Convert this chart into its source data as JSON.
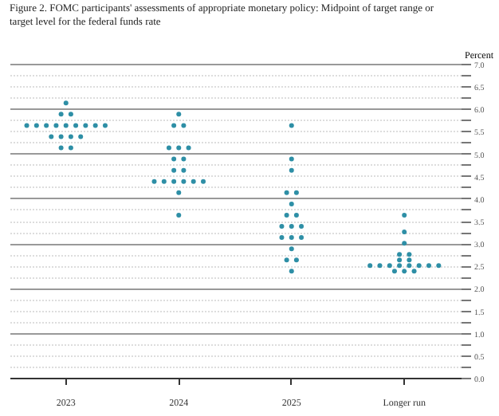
{
  "chart_data": {
    "type": "scatter",
    "title": "Figure 2. FOMC participants' assessments of appropriate monetary policy: Midpoint of target range or target level for the federal funds rate",
    "ylabel": "Percent",
    "categories": [
      "2023",
      "2024",
      "2025",
      "Longer run"
    ],
    "series": [
      {
        "color": "#2e8fa6",
        "values": [
          6.125,
          5.875,
          5.625,
          3.625
        ]
      },
      {
        "color": "#2e8fa6",
        "values": [
          5.875,
          5.625,
          4.875,
          3.25
        ]
      },
      {
        "color": "#2e8fa6",
        "values": [
          5.875,
          5.625,
          4.625,
          3.0
        ]
      },
      {
        "color": "#2e8fa6",
        "values": [
          5.625,
          5.125,
          4.125,
          2.75
        ]
      },
      {
        "color": "#2e8fa6",
        "values": [
          5.625,
          5.125,
          4.125,
          2.75
        ]
      },
      {
        "color": "#2e8fa6",
        "values": [
          5.625,
          5.125,
          3.875,
          2.625
        ]
      },
      {
        "color": "#2e8fa6",
        "values": [
          5.625,
          4.875,
          3.625,
          2.625
        ]
      },
      {
        "color": "#2e8fa6",
        "values": [
          5.625,
          4.875,
          3.625,
          2.5
        ]
      },
      {
        "color": "#2e8fa6",
        "values": [
          5.625,
          4.625,
          3.375,
          2.5
        ]
      },
      {
        "color": "#2e8fa6",
        "values": [
          5.625,
          4.625,
          3.375,
          2.5
        ]
      },
      {
        "color": "#2e8fa6",
        "values": [
          5.625,
          4.375,
          3.375,
          2.5
        ]
      },
      {
        "color": "#2e8fa6",
        "values": [
          5.625,
          4.375,
          3.125,
          2.5
        ]
      },
      {
        "color": "#2e8fa6",
        "values": [
          5.375,
          4.375,
          3.125,
          2.5
        ]
      },
      {
        "color": "#2e8fa6",
        "values": [
          5.375,
          4.375,
          3.125,
          2.5
        ]
      },
      {
        "color": "#2e8fa6",
        "values": [
          5.375,
          4.375,
          2.875,
          2.5
        ]
      },
      {
        "color": "#2e8fa6",
        "values": [
          5.375,
          4.375,
          2.625,
          2.375
        ]
      },
      {
        "color": "#2e8fa6",
        "values": [
          5.125,
          4.125,
          2.625,
          2.375
        ]
      },
      {
        "color": "#2e8fa6",
        "values": [
          5.125,
          3.625,
          2.375,
          2.375
        ]
      }
    ],
    "ylim": [
      0,
      7
    ],
    "yticks": [
      {
        "value": 0,
        "label": "0.0"
      },
      {
        "value": 0.25,
        "label": null
      },
      0.5,
      {
        "value": 0.75,
        "label": null
      },
      {
        "value": 1,
        "label": "1.0"
      },
      {
        "value": 1.25,
        "label": null
      },
      1.5,
      {
        "value": 1.75,
        "label": null
      },
      {
        "value": 2,
        "label": "2.0"
      },
      {
        "value": 2.25,
        "label": null
      },
      2.5,
      {
        "value": 2.75,
        "label": null
      },
      {
        "value": 3,
        "label": "3.0"
      },
      {
        "value": 3.25,
        "label": null
      },
      3.5,
      {
        "value": 3.75,
        "label": null
      },
      {
        "value": 4,
        "label": "4.0"
      },
      {
        "value": 4.25,
        "label": null
      },
      4.5,
      {
        "value": 4.75,
        "label": null
      },
      {
        "value": 5,
        "label": "5.0"
      },
      {
        "value": 5.25,
        "label": null
      },
      5.5,
      {
        "value": 5.75,
        "label": null
      },
      {
        "value": 6,
        "label": "6.0"
      },
      {
        "value": 6.25,
        "label": null
      },
      6.5,
      {
        "value": 6.75,
        "label": null
      },
      {
        "value": 7,
        "label": "7.0"
      }
    ],
    "grid": "y",
    "marker": "circle"
  }
}
